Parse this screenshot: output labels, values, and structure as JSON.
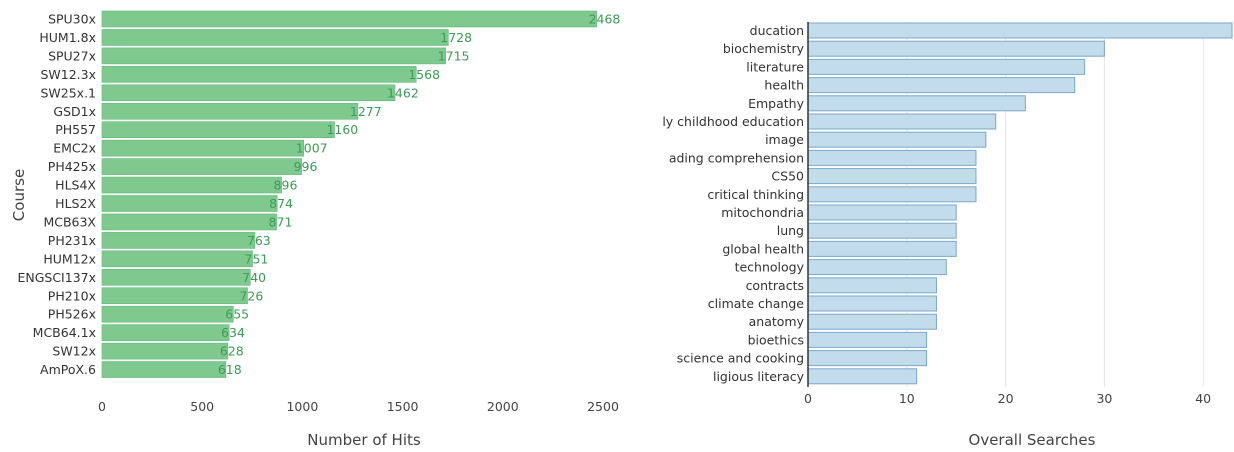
{
  "chart_data": [
    {
      "type": "bar",
      "orientation": "horizontal",
      "categories": [
        "SPU30x",
        "HUM1.8x",
        "SPU27x",
        "SW12.3x",
        "SW25x.1",
        "GSD1x",
        "PH557",
        "EMC2x",
        "PH425x",
        "HLS4X",
        "HLS2X",
        "MCB63X",
        "PH231x",
        "HUM12x",
        "ENGSCI137x",
        "PH210x",
        "PH526x",
        "MCB64.1x",
        "SW12x",
        "AmPoX.6"
      ],
      "values": [
        2468,
        1728,
        1715,
        1568,
        1462,
        1277,
        1160,
        1007,
        996,
        896,
        874,
        871,
        763,
        751,
        740,
        726,
        655,
        634,
        628,
        618
      ],
      "data_labels": [
        "2468",
        "1728",
        "1715",
        "1568",
        "1462",
        "1277",
        "1160",
        "1007",
        "996",
        "896",
        "874",
        "871",
        "763",
        "751",
        "740",
        "726",
        "655",
        "634",
        "628",
        "618"
      ],
      "xlabel": "Number of Hits",
      "ylabel": "Course",
      "xlim": [
        0,
        2650
      ],
      "xticks": [
        0,
        500,
        1000,
        1500,
        2000,
        2500
      ],
      "xtick_labels": [
        "0",
        "500",
        "1000",
        "1500",
        "2000",
        "2500"
      ],
      "grid": false,
      "colors": {
        "bar": "#7fc98f",
        "bar_edge": "#5fb877",
        "label": "#3e9b57"
      }
    },
    {
      "type": "bar",
      "orientation": "horizontal",
      "categories": [
        "ducation",
        "biochemistry",
        "literature",
        "health",
        "Empathy",
        "ly childhood education",
        "image",
        "ading comprehension",
        "CS50",
        "critical thinking",
        "mitochondria",
        "lung",
        "global health",
        "technology",
        "contracts",
        "climate change",
        "anatomy",
        "bioethics",
        "science and cooking",
        "ligious literacy"
      ],
      "values": [
        43,
        30,
        28,
        27,
        22,
        19,
        18,
        17,
        17,
        17,
        15,
        15,
        15,
        14,
        13,
        13,
        13,
        12,
        12,
        11
      ],
      "xlabel": "Overall Searches",
      "ylabel": "",
      "xlim": [
        0,
        43
      ],
      "xticks": [
        0,
        10,
        20,
        30,
        40
      ],
      "xtick_labels": [
        "0",
        "10",
        "20",
        "30",
        "40"
      ],
      "grid": true,
      "colors": {
        "bar": "#c2dcec",
        "bar_edge": "#7aa9c9",
        "axis": "#333333"
      }
    }
  ]
}
